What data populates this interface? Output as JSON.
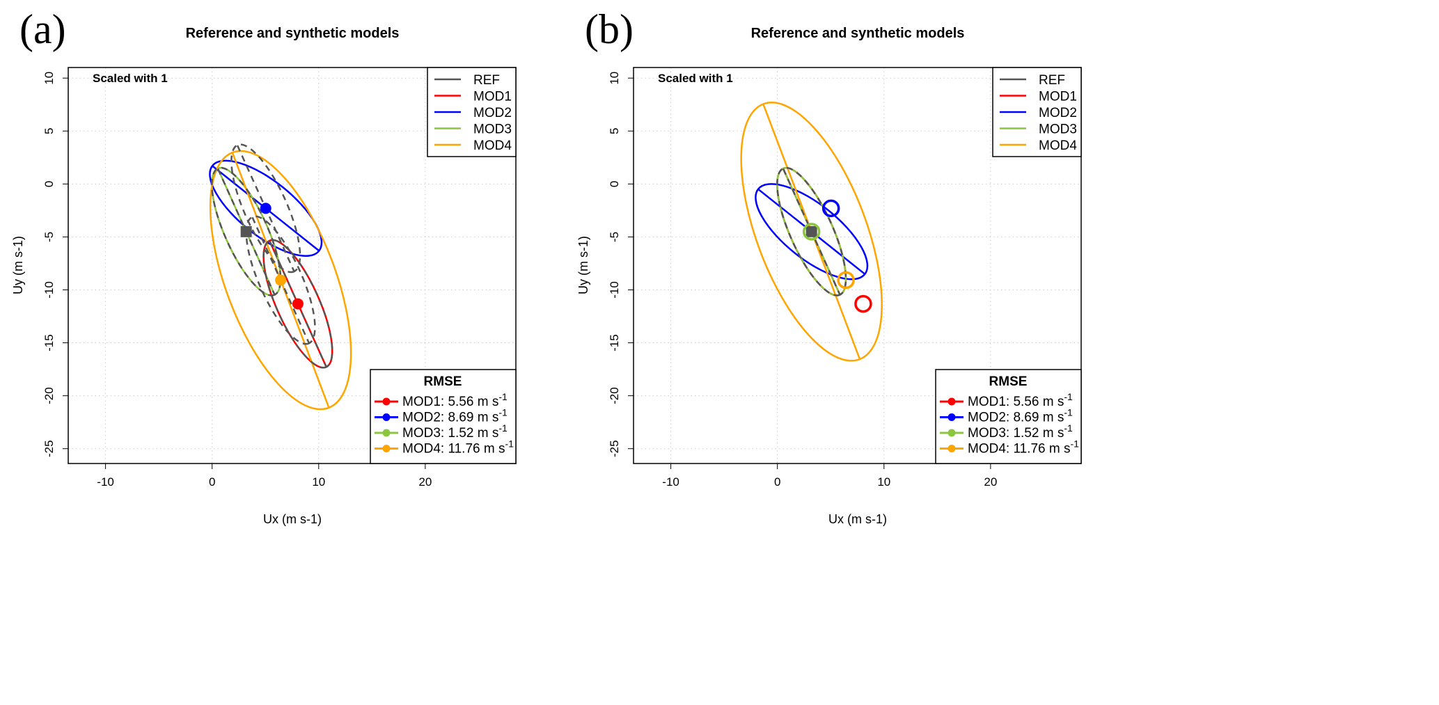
{
  "colors": {
    "REF": "#555555",
    "MOD1": "#ff0000",
    "MOD2": "#0000ff",
    "MOD3": "#8cc63f",
    "MOD4": "#ffa500"
  },
  "chart_data": [
    {
      "type": "scatter",
      "panel_label": "(a)",
      "title": "Reference and synthetic models",
      "annotation": "Scaled with 1",
      "xlabel": "Ux (m s-1)",
      "ylabel": "Uy (m s-1)",
      "xlim": [
        -13.5,
        28.5
      ],
      "ylim": [
        -26.4,
        11
      ],
      "xticks": [
        "-10",
        "0",
        "10",
        "20"
      ],
      "xtick_values": [
        -10,
        0,
        10,
        20
      ],
      "yticks": [
        "10",
        "5",
        "0",
        "-5",
        "-10",
        "-15",
        "-20",
        "-25"
      ],
      "ytick_values": [
        10,
        5,
        0,
        -5,
        -10,
        -15,
        -20,
        -25
      ],
      "grid": true,
      "mode": "ellipses_at_model_means",
      "legend": {
        "position": "top-right",
        "entries": [
          "REF",
          "MOD1",
          "MOD2",
          "MOD3",
          "MOD4"
        ]
      },
      "rmse_legend": {
        "position": "bottom-right",
        "title": "RMSE",
        "entries": [
          {
            "model": "MOD1",
            "text": "MOD1: 5.56 m s",
            "sup": "-1",
            "value": 5.56
          },
          {
            "model": "MOD2",
            "text": "MOD2: 8.69 m s",
            "sup": "-1",
            "value": 8.69
          },
          {
            "model": "MOD3",
            "text": "MOD3: 1.52 m s",
            "sup": "-1",
            "value": 1.52
          },
          {
            "model": "MOD4",
            "text": "MOD4: 11.76 m s",
            "sup": "-1",
            "value": 11.76
          }
        ]
      },
      "ref": {
        "mean": [
          3.2,
          -4.5
        ],
        "semi_major": 6.5,
        "semi_minor": 2.0,
        "angle_deg": -65.9
      },
      "models": [
        {
          "name": "MOD1",
          "mean": [
            8.05,
            -11.32
          ],
          "semi_major": 6.5,
          "semi_minor": 2.0,
          "angle_deg": -65.9
        },
        {
          "name": "MOD2",
          "mean": [
            5.03,
            -2.3
          ],
          "semi_major": 6.4,
          "semi_minor": 2.55,
          "angle_deg": -38.7
        },
        {
          "name": "MOD3",
          "mean": [
            3.2,
            -4.5
          ],
          "semi_major": 6.5,
          "semi_minor": 2.0,
          "angle_deg": -65.9
        },
        {
          "name": "MOD4",
          "mean": [
            6.43,
            -9.08
          ],
          "semi_major": 12.8,
          "semi_minor": 5.15,
          "angle_deg": -69.4
        }
      ]
    },
    {
      "type": "scatter",
      "panel_label": "(b)",
      "title": "Reference and synthetic models",
      "annotation": "Scaled with 1",
      "xlabel": "Ux (m s-1)",
      "ylabel": "Uy (m s-1)",
      "xlim": [
        -13.5,
        28.5
      ],
      "ylim": [
        -26.4,
        11
      ],
      "xticks": [
        "-10",
        "0",
        "10",
        "20"
      ],
      "xtick_values": [
        -10,
        0,
        10,
        20
      ],
      "yticks": [
        "10",
        "5",
        "0",
        "-5",
        "-10",
        "-15",
        "-20",
        "-25"
      ],
      "ytick_values": [
        10,
        5,
        0,
        -5,
        -10,
        -15,
        -20,
        -25
      ],
      "grid": true,
      "mode": "ellipses_at_ref_mean",
      "legend": {
        "position": "top-right",
        "entries": [
          "REF",
          "MOD1",
          "MOD2",
          "MOD3",
          "MOD4"
        ]
      },
      "rmse_legend": {
        "position": "bottom-right",
        "title": "RMSE",
        "entries": [
          {
            "model": "MOD1",
            "text": "MOD1: 5.56 m s",
            "sup": "-1",
            "value": 5.56
          },
          {
            "model": "MOD2",
            "text": "MOD2: 8.69 m s",
            "sup": "-1",
            "value": 8.69
          },
          {
            "model": "MOD3",
            "text": "MOD3: 1.52 m s",
            "sup": "-1",
            "value": 1.52
          },
          {
            "model": "MOD4",
            "text": "MOD4: 11.76 m s",
            "sup": "-1",
            "value": 11.76
          }
        ]
      },
      "ref": {
        "mean": [
          3.2,
          -4.5
        ],
        "semi_major": 6.5,
        "semi_minor": 2.0,
        "angle_deg": -65.9
      },
      "models": [
        {
          "name": "MOD1",
          "mean": [
            8.05,
            -11.32
          ],
          "semi_major": 6.5,
          "semi_minor": 2.0,
          "angle_deg": -65.9
        },
        {
          "name": "MOD2",
          "mean": [
            5.03,
            -2.3
          ],
          "semi_major": 6.4,
          "semi_minor": 2.55,
          "angle_deg": -38.7
        },
        {
          "name": "MOD3",
          "mean": [
            3.2,
            -4.5
          ],
          "semi_major": 6.5,
          "semi_minor": 2.0,
          "angle_deg": -65.9
        },
        {
          "name": "MOD4",
          "mean": [
            6.43,
            -9.08
          ],
          "semi_major": 12.8,
          "semi_minor": 5.15,
          "angle_deg": -69.4
        }
      ]
    }
  ]
}
